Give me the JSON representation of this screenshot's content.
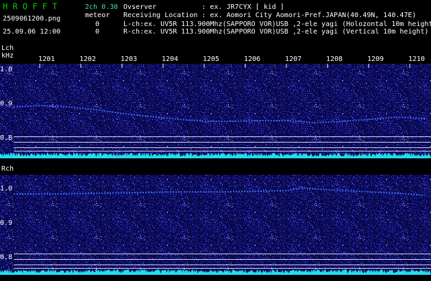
{
  "header": {
    "app": "H R O F F T",
    "mode": "2ch 0.30",
    "kind": "meteor",
    "file": "2509061200.png",
    "datetime": "25.09.06 12:00",
    "count_l": "0",
    "count_r": "0",
    "observer": "Ovserver           : ex. JR7CYX [ kid ]",
    "location": "Receiving Location : ex. Aomori City Aomori-Pref.JAPAN(40.49N, 140.47E)",
    "lch": "L-ch:ex. UV5R 113.900Mhz(SAPPORO VOR)USB ,2-ele yagi (Holozontal 10m height",
    "rch": "R-ch:ex. UV5R 113.900Mhz(SAPPORO VOR)USB ,2-ele yagi (Vertical 10m height)"
  },
  "time_labels": [
    "1201",
    "1202",
    "1203",
    "1204",
    "1205",
    "1206",
    "1207",
    "1208",
    "1209",
    "1210"
  ],
  "lch_panel": {
    "label": "Lch",
    "unit": "kHz",
    "yticks": [
      "1.0",
      "0.9",
      "0.8"
    ]
  },
  "rch_panel": {
    "label": "Rch",
    "yticks": [
      "1.0",
      "0.9",
      "0.8"
    ]
  }
}
